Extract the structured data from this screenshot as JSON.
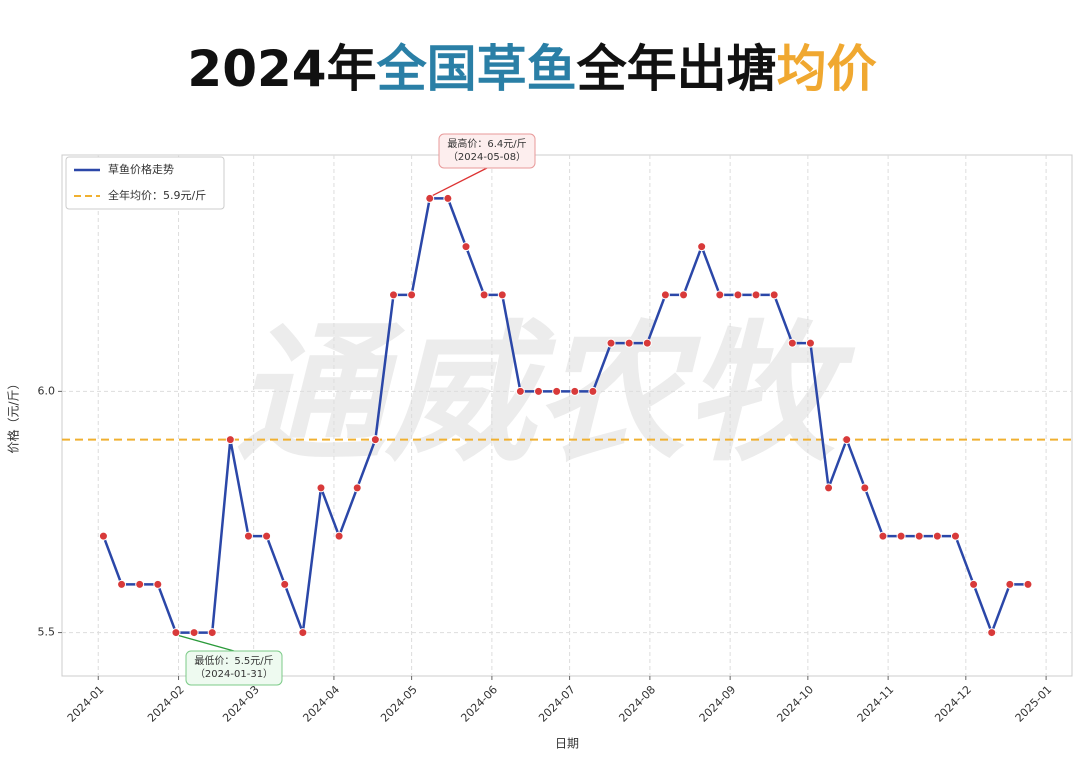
{
  "chart_data": {
    "type": "line",
    "title": [
      {
        "text": "2024年",
        "color": "#111111"
      },
      {
        "text": "全国草鱼",
        "color": "#2a7fa6"
      },
      {
        "text": "全年出塘",
        "color": "#111111"
      },
      {
        "text": "均价",
        "color": "#f0a830"
      }
    ],
    "watermark": "通威农牧",
    "x_label": "日期",
    "y_label": "价格（元/斤）",
    "xlim": [
      "2023-12-18",
      "2025-01-11"
    ],
    "xticks": [
      "2024-01",
      "2024-02",
      "2024-03",
      "2024-04",
      "2024-05",
      "2024-06",
      "2024-07",
      "2024-08",
      "2024-09",
      "2024-10",
      "2024-11",
      "2024-12",
      "2025-01"
    ],
    "ylim": [
      5.41,
      6.49
    ],
    "yticks": [
      {
        "value": 5.5,
        "label": "5.5"
      },
      {
        "value": 6,
        "label": "6.0"
      }
    ],
    "grid": true,
    "legend": "upper left",
    "series": [
      {
        "name": "草鱼价格走势",
        "color": "#2b47a8",
        "marker_color": "#d83a3a",
        "x": [
          "2024-01-03",
          "2024-01-10",
          "2024-01-17",
          "2024-01-24",
          "2024-01-31",
          "2024-02-07",
          "2024-02-14",
          "2024-02-21",
          "2024-02-28",
          "2024-03-06",
          "2024-03-13",
          "2024-03-20",
          "2024-03-27",
          "2024-04-03",
          "2024-04-10",
          "2024-04-17",
          "2024-04-24",
          "2024-05-01",
          "2024-05-08",
          "2024-05-15",
          "2024-05-22",
          "2024-05-29",
          "2024-06-05",
          "2024-06-12",
          "2024-06-19",
          "2024-06-26",
          "2024-07-03",
          "2024-07-10",
          "2024-07-17",
          "2024-07-24",
          "2024-07-31",
          "2024-08-07",
          "2024-08-14",
          "2024-08-21",
          "2024-08-28",
          "2024-09-04",
          "2024-09-11",
          "2024-09-18",
          "2024-09-25",
          "2024-10-02",
          "2024-10-09",
          "2024-10-16",
          "2024-10-23",
          "2024-10-30",
          "2024-11-06",
          "2024-11-13",
          "2024-11-20",
          "2024-11-27",
          "2024-12-04",
          "2024-12-11",
          "2024-12-18",
          "2024-12-25"
        ],
        "values": [
          5.7,
          5.6,
          5.6,
          5.6,
          5.5,
          5.5,
          5.5,
          5.9,
          5.7,
          5.7,
          5.6,
          5.5,
          5.8,
          5.7,
          5.8,
          5.9,
          6.2,
          6.2,
          6.4,
          6.4,
          6.3,
          6.2,
          6.2,
          6.0,
          6.0,
          6.0,
          6.0,
          6.0,
          6.1,
          6.1,
          6.1,
          6.2,
          6.2,
          6.3,
          6.2,
          6.2,
          6.2,
          6.2,
          6.1,
          6.1,
          5.8,
          5.9,
          5.8,
          5.7,
          5.7,
          5.7,
          5.7,
          5.7,
          5.6,
          5.5,
          5.6,
          5.6
        ]
      }
    ],
    "average": {
      "name": "全年均价：5.9元/斤",
      "value": 5.9,
      "color": "#f0b030"
    },
    "max_annotation": [
      "最高价：6.4元/斤",
      "（2024-05-08）"
    ],
    "min_annotation": [
      "最低价：5.5元/斤",
      "（2024-01-31）"
    ]
  }
}
